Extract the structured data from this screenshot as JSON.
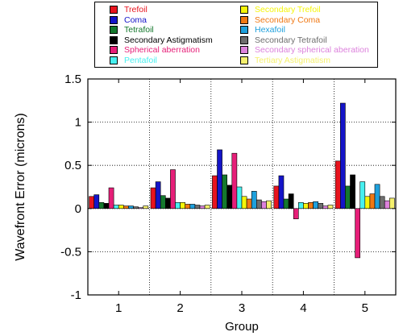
{
  "chart_data": {
    "type": "bar",
    "title": "",
    "xlabel": "Group",
    "ylabel": "Wavefront Error (microns)",
    "ylim": [
      -1,
      1.5
    ],
    "yticks": [
      -1,
      -0.5,
      0,
      0.5,
      1,
      1.5
    ],
    "ytick_labels": [
      "-1",
      "-0.5",
      "0",
      "0.5",
      "1",
      "1.5"
    ],
    "categories": [
      "1",
      "2",
      "3",
      "4",
      "5"
    ],
    "grid": "vertical dotted lines between groups, horizontal dotted lines at y ticks",
    "legend_position": "top, above plot, two columns",
    "series": [
      {
        "name": "Trefoil",
        "color": "#e8141e",
        "values": [
          0.14,
          0.24,
          0.38,
          0.26,
          0.55
        ]
      },
      {
        "name": "Coma",
        "color": "#1414c8",
        "values": [
          0.16,
          0.31,
          0.68,
          0.38,
          1.22
        ]
      },
      {
        "name": "Tetrafoil",
        "color": "#14782d",
        "values": [
          0.07,
          0.15,
          0.39,
          0.11,
          0.26
        ]
      },
      {
        "name": "Secondary Astigmatism",
        "color": "#000000",
        "values": [
          0.06,
          0.12,
          0.27,
          0.17,
          0.39
        ]
      },
      {
        "name": "Spherical aberration",
        "color": "#e61e78",
        "values": [
          0.24,
          0.45,
          0.64,
          -0.12,
          -0.57
        ]
      },
      {
        "name": "Pentafoil",
        "color": "#46f0f0",
        "values": [
          0.04,
          0.07,
          0.25,
          0.07,
          0.31
        ]
      },
      {
        "name": "Secondary Trefoil",
        "color": "#f5f50a",
        "values": [
          0.04,
          0.07,
          0.14,
          0.06,
          0.14
        ]
      },
      {
        "name": "Secondary Coma",
        "color": "#f07814",
        "values": [
          0.03,
          0.05,
          0.11,
          0.07,
          0.17
        ]
      },
      {
        "name": "Hexafoil",
        "color": "#1ea0dc",
        "values": [
          0.03,
          0.05,
          0.2,
          0.08,
          0.28
        ]
      },
      {
        "name": "Secondary Tetrafoil",
        "color": "#6e6e6e",
        "values": [
          0.02,
          0.04,
          0.1,
          0.06,
          0.14
        ]
      },
      {
        "name": "Secondary spherical aberation",
        "color": "#dc82dc",
        "values": [
          0.01,
          0.03,
          0.08,
          0.03,
          0.09
        ]
      },
      {
        "name": "Tertiary Astigmatism",
        "color": "#f5f06e",
        "values": [
          0.03,
          0.04,
          0.09,
          0.04,
          0.12
        ]
      }
    ]
  }
}
